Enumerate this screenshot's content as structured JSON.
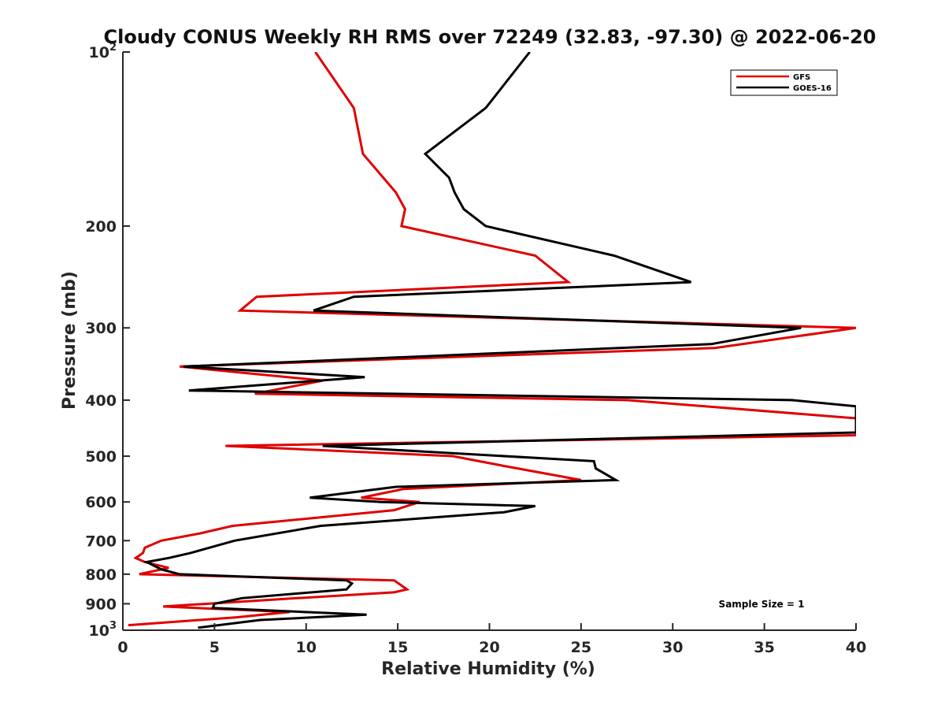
{
  "chart_data": {
    "type": "line",
    "title": "Cloudy CONUS Weekly RH RMS over 72249 (32.83, -97.30) @ 2022-06-20",
    "xlabel": "Relative Humidity (%)",
    "ylabel": "Pressure (mb)",
    "xlim": [
      0,
      40
    ],
    "ylim": [
      100,
      1000
    ],
    "y_scale": "log",
    "y_reversed": true,
    "grid": false,
    "legend_position": "top-right",
    "x_ticks": [
      "0",
      "5",
      "10",
      "15",
      "20",
      "25",
      "30",
      "35",
      "40"
    ],
    "y_ticks": [
      {
        "value": 100,
        "base": "10",
        "exp": "2"
      },
      {
        "value": 200,
        "label": "200"
      },
      {
        "value": 300,
        "label": "300"
      },
      {
        "value": 400,
        "label": "400"
      },
      {
        "value": 500,
        "label": "500"
      },
      {
        "value": 600,
        "label": "600"
      },
      {
        "value": 700,
        "label": "700"
      },
      {
        "value": 800,
        "label": "800"
      },
      {
        "value": 900,
        "label": "900"
      },
      {
        "value": 1000,
        "base": "10",
        "exp": "3"
      }
    ],
    "annotation": "Sample Size = 1",
    "series": [
      {
        "name": "GFS",
        "color": "#e00000",
        "points": [
          {
            "x": 10.5,
            "p": 100
          },
          {
            "x": 12.6,
            "p": 125
          },
          {
            "x": 13.1,
            "p": 150
          },
          {
            "x": 14.9,
            "p": 175
          },
          {
            "x": 15.4,
            "p": 187
          },
          {
            "x": 15.2,
            "p": 200
          },
          {
            "x": 22.5,
            "p": 225
          },
          {
            "x": 24.3,
            "p": 250
          },
          {
            "x": 7.3,
            "p": 265
          },
          {
            "x": 6.4,
            "p": 280
          },
          {
            "x": 40,
            "p": 300
          },
          {
            "x": 32.3,
            "p": 325
          },
          {
            "x": 3.1,
            "p": 350
          },
          {
            "x": 10.9,
            "p": 370
          },
          {
            "x": 7.2,
            "p": 390
          },
          {
            "x": 27.5,
            "p": 400
          },
          {
            "x": 40,
            "p": 430
          },
          {
            "x": 40,
            "p": 460
          },
          {
            "x": 5.6,
            "p": 480
          },
          {
            "x": 18.0,
            "p": 500
          },
          {
            "x": 20.8,
            "p": 520
          },
          {
            "x": 25.0,
            "p": 550
          },
          {
            "x": 15.3,
            "p": 570
          },
          {
            "x": 13.0,
            "p": 590
          },
          {
            "x": 16.2,
            "p": 600
          },
          {
            "x": 14.8,
            "p": 620
          },
          {
            "x": 6.0,
            "p": 660
          },
          {
            "x": 4.2,
            "p": 680
          },
          {
            "x": 2.1,
            "p": 700
          },
          {
            "x": 1.2,
            "p": 720
          },
          {
            "x": 1.1,
            "p": 735
          },
          {
            "x": 0.7,
            "p": 750
          },
          {
            "x": 1.2,
            "p": 762
          },
          {
            "x": 2.5,
            "p": 780
          },
          {
            "x": 0.9,
            "p": 800
          },
          {
            "x": 14.8,
            "p": 820
          },
          {
            "x": 15.5,
            "p": 850
          },
          {
            "x": 14.8,
            "p": 860
          },
          {
            "x": 9.5,
            "p": 880
          },
          {
            "x": 2.2,
            "p": 910
          },
          {
            "x": 9.1,
            "p": 930
          },
          {
            "x": 6.2,
            "p": 950
          },
          {
            "x": 0.3,
            "p": 980
          }
        ]
      },
      {
        "name": "GOES-16",
        "color": "#000000",
        "points": [
          {
            "x": 22.2,
            "p": 100
          },
          {
            "x": 19.8,
            "p": 125
          },
          {
            "x": 16.5,
            "p": 150
          },
          {
            "x": 17.8,
            "p": 165
          },
          {
            "x": 18.1,
            "p": 175
          },
          {
            "x": 18.6,
            "p": 187
          },
          {
            "x": 19.8,
            "p": 200
          },
          {
            "x": 26.8,
            "p": 225
          },
          {
            "x": 31.0,
            "p": 250
          },
          {
            "x": 12.6,
            "p": 265
          },
          {
            "x": 10.4,
            "p": 280
          },
          {
            "x": 37.0,
            "p": 300
          },
          {
            "x": 32.1,
            "p": 320
          },
          {
            "x": 3.3,
            "p": 350
          },
          {
            "x": 13.2,
            "p": 365
          },
          {
            "x": 3.6,
            "p": 385
          },
          {
            "x": 36.5,
            "p": 400
          },
          {
            "x": 40,
            "p": 410
          },
          {
            "x": 40,
            "p": 455
          },
          {
            "x": 10.9,
            "p": 480
          },
          {
            "x": 25.7,
            "p": 510
          },
          {
            "x": 25.8,
            "p": 525
          },
          {
            "x": 26.9,
            "p": 550
          },
          {
            "x": 14.9,
            "p": 565
          },
          {
            "x": 10.2,
            "p": 590
          },
          {
            "x": 14.1,
            "p": 600
          },
          {
            "x": 22.5,
            "p": 610
          },
          {
            "x": 20.8,
            "p": 625
          },
          {
            "x": 10.8,
            "p": 660
          },
          {
            "x": 6.1,
            "p": 700
          },
          {
            "x": 3.7,
            "p": 735
          },
          {
            "x": 2.5,
            "p": 750
          },
          {
            "x": 1.3,
            "p": 762
          },
          {
            "x": 2.1,
            "p": 785
          },
          {
            "x": 3.1,
            "p": 800
          },
          {
            "x": 12.2,
            "p": 820
          },
          {
            "x": 12.5,
            "p": 830
          },
          {
            "x": 12.2,
            "p": 850
          },
          {
            "x": 6.5,
            "p": 880
          },
          {
            "x": 5.0,
            "p": 900
          },
          {
            "x": 4.9,
            "p": 915
          },
          {
            "x": 13.3,
            "p": 940
          },
          {
            "x": 7.5,
            "p": 960
          },
          {
            "x": 4.1,
            "p": 990
          }
        ]
      }
    ]
  }
}
